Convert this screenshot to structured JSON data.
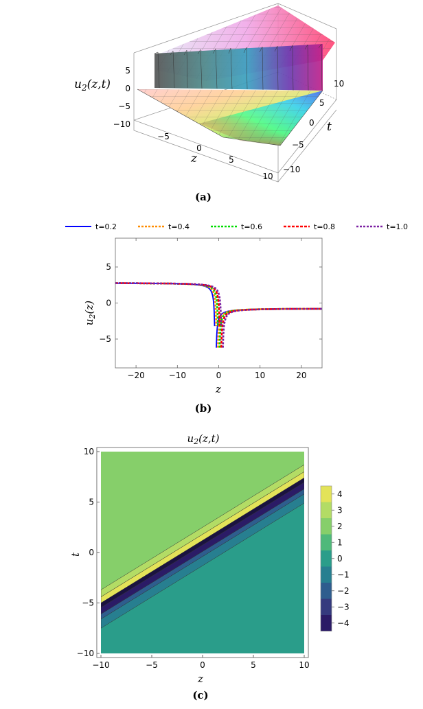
{
  "panel_a": {
    "caption": "(a)",
    "zlabel": "u",
    "zlabel_sub": "2",
    "zlabel_args": "(z,t)",
    "xlabel": "z",
    "ylabel": "t",
    "vert_ticks": [
      "5",
      "0",
      "−5",
      "−10"
    ],
    "z_ticks": [
      "−5",
      "0",
      "5",
      "10"
    ],
    "t_ticks": [
      "10",
      "5",
      "0",
      "−5",
      "−10"
    ]
  },
  "panel_b": {
    "caption": "(b)",
    "ylabel_main": "u",
    "ylabel_sub": "2",
    "ylabel_args": "(z)",
    "xlabel": "z"
  },
  "panel_c": {
    "caption": "(c)",
    "title_main": "u",
    "title_sub": "2",
    "title_args": "(z,t)",
    "xlabel": "z",
    "ylabel": "t"
  },
  "chart_data": [
    {
      "type": "surface",
      "zlabel": "u2(z,t)",
      "xlabel": "z",
      "ylabel": "t",
      "xlim": [
        -10,
        10
      ],
      "ylim": [
        -10,
        10
      ],
      "zlim": [
        -10,
        5
      ],
      "colormap": "rainbow"
    },
    {
      "type": "line",
      "xlabel": "z",
      "ylabel": "u2(z)",
      "xlim": [
        -25,
        25
      ],
      "ylim": [
        -9,
        9
      ],
      "xticks": [
        -20,
        -10,
        0,
        10,
        20
      ],
      "yticks": [
        -5,
        0,
        5
      ],
      "legend_position": "top",
      "series": [
        {
          "name": "t=0.2",
          "color": "#0000ff",
          "dash": "solid",
          "pole": -0.8,
          "left_level": 2.8,
          "right_level": -0.75
        },
        {
          "name": "t=0.4",
          "color": "#ff8c00",
          "dash": "dashed",
          "pole": -0.4,
          "left_level": 2.8,
          "right_level": -0.75
        },
        {
          "name": "t=0.6",
          "color": "#00dd00",
          "dash": "dashed",
          "pole": 0.0,
          "left_level": 2.8,
          "right_level": -0.75
        },
        {
          "name": "t=0.8",
          "color": "#ff0000",
          "dash": "dashed",
          "pole": 0.4,
          "left_level": 2.8,
          "right_level": -0.75
        },
        {
          "name": "t=1.0",
          "color": "#7b1fa2",
          "dash": "dashed",
          "pole": 0.8,
          "left_level": 2.8,
          "right_level": -0.75
        }
      ]
    },
    {
      "type": "contour",
      "title": "u2(z,t)",
      "xlabel": "z",
      "ylabel": "t",
      "xlim": [
        -10,
        10
      ],
      "ylim": [
        -10,
        10
      ],
      "xticks": [
        -10,
        -5,
        0,
        5,
        10
      ],
      "yticks": [
        -10,
        -5,
        0,
        5,
        10
      ],
      "upper_region_value": 2,
      "lower_region_value": 0,
      "legend_levels": [
        {
          "label": "4",
          "color": "#e3e359"
        },
        {
          "label": "3",
          "color": "#b3dc65"
        },
        {
          "label": "2",
          "color": "#86cf6a"
        },
        {
          "label": "1",
          "color": "#4fb97a"
        },
        {
          "label": "0",
          "color": "#2a9d8a"
        },
        {
          "label": "−1",
          "color": "#277f90"
        },
        {
          "label": "−2",
          "color": "#2e5d8e"
        },
        {
          "label": "−3",
          "color": "#353a7e"
        },
        {
          "label": "−4",
          "color": "#2b1b66"
        }
      ]
    }
  ]
}
